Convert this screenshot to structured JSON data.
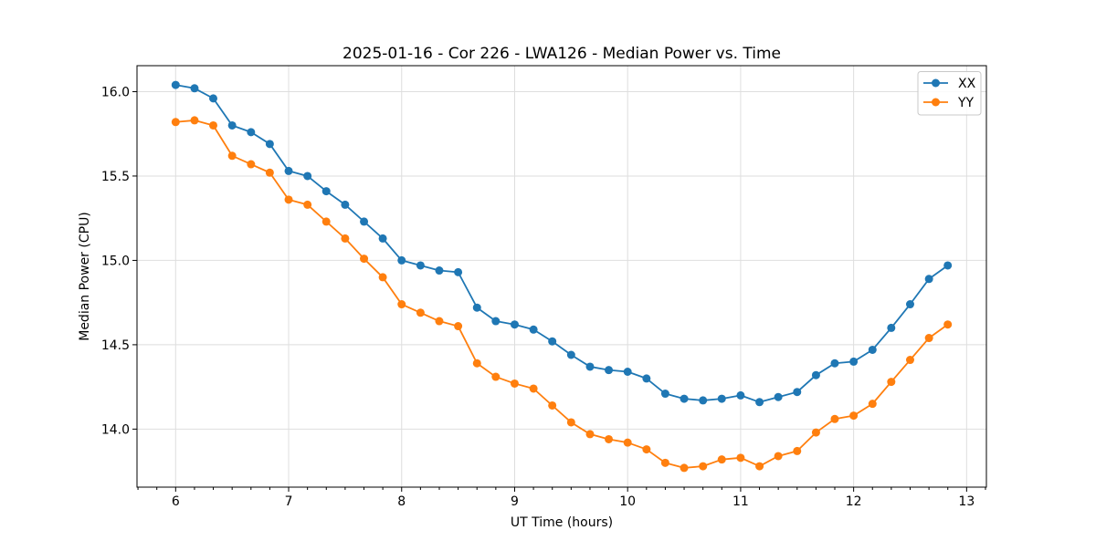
{
  "chart_data": {
    "type": "line",
    "title": "2025-01-16 - Cor 226 - LWA126 - Median Power vs. Time",
    "xlabel": "UT Time (hours)",
    "ylabel": "Median Power (CPU)",
    "xlim": [
      5.658,
      13.175
    ],
    "ylim": [
      13.656,
      16.154
    ],
    "x_ticks": [
      6,
      7,
      8,
      9,
      10,
      11,
      12,
      13
    ],
    "y_ticks": [
      14.0,
      14.5,
      15.0,
      15.5,
      16.0
    ],
    "x_minor_step": 0.166667,
    "grid": true,
    "legend_position": "upper right",
    "x": [
      6.0,
      6.167,
      6.333,
      6.5,
      6.667,
      6.833,
      7.0,
      7.167,
      7.333,
      7.5,
      7.667,
      7.833,
      8.0,
      8.167,
      8.333,
      8.5,
      8.667,
      8.833,
      9.0,
      9.167,
      9.333,
      9.5,
      9.667,
      9.833,
      10.0,
      10.167,
      10.333,
      10.5,
      10.667,
      10.833,
      11.0,
      11.167,
      11.333,
      11.5,
      11.667,
      11.833,
      12.0,
      12.167,
      12.333,
      12.5,
      12.667,
      12.833
    ],
    "series": [
      {
        "name": "XX",
        "color": "#1f77b4",
        "marker": "circle",
        "values": [
          16.04,
          16.02,
          15.96,
          15.8,
          15.76,
          15.69,
          15.53,
          15.5,
          15.41,
          15.33,
          15.23,
          15.13,
          15.0,
          14.97,
          14.94,
          14.93,
          14.72,
          14.64,
          14.62,
          14.59,
          14.52,
          14.44,
          14.37,
          14.35,
          14.34,
          14.3,
          14.21,
          14.18,
          14.17,
          14.18,
          14.2,
          14.16,
          14.19,
          14.22,
          14.32,
          14.39,
          14.4,
          14.47,
          14.6,
          14.74,
          14.89,
          14.97
        ]
      },
      {
        "name": "YY",
        "color": "#ff7f0e",
        "marker": "circle",
        "values": [
          15.82,
          15.83,
          15.8,
          15.62,
          15.57,
          15.52,
          15.36,
          15.33,
          15.23,
          15.13,
          15.01,
          14.9,
          14.74,
          14.69,
          14.64,
          14.61,
          14.39,
          14.31,
          14.27,
          14.24,
          14.14,
          14.04,
          13.97,
          13.94,
          13.92,
          13.88,
          13.8,
          13.77,
          13.78,
          13.82,
          13.83,
          13.78,
          13.84,
          13.87,
          13.98,
          14.06,
          14.08,
          14.15,
          14.28,
          14.41,
          14.54,
          14.62
        ]
      }
    ]
  }
}
